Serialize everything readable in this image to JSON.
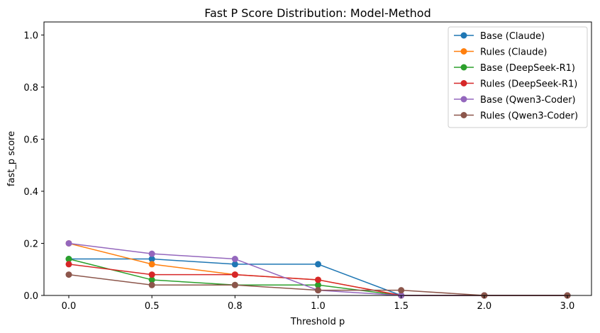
{
  "chart_data": {
    "type": "line",
    "title": "Fast P Score Distribution: Model-Method",
    "xlabel": "Threshold p",
    "ylabel": "fast_p score",
    "categories": [
      "0.0",
      "0.5",
      "0.8",
      "1.0",
      "1.5",
      "2.0",
      "3.0"
    ],
    "yticks": [
      "0.0",
      "0.2",
      "0.4",
      "0.6",
      "0.8",
      "1.0"
    ],
    "ylim": [
      0,
      1.05
    ],
    "grid": false,
    "legend_position": "top-right",
    "series": [
      {
        "name": "Base (Claude)",
        "color": "#1f77b4",
        "values": [
          0.14,
          0.14,
          0.12,
          0.12,
          0.0,
          0.0,
          0.0
        ]
      },
      {
        "name": "Rules (Claude)",
        "color": "#ff7f0e",
        "values": [
          0.2,
          0.12,
          0.08,
          0.06,
          0.0,
          0.0,
          0.0
        ]
      },
      {
        "name": "Base (DeepSeek-R1)",
        "color": "#2ca02c",
        "values": [
          0.14,
          0.06,
          0.04,
          0.04,
          0.0,
          0.0,
          0.0
        ]
      },
      {
        "name": "Rules (DeepSeek-R1)",
        "color": "#d62728",
        "values": [
          0.12,
          0.08,
          0.08,
          0.06,
          0.0,
          0.0,
          0.0
        ]
      },
      {
        "name": "Base (Qwen3-Coder)",
        "color": "#9467bd",
        "values": [
          0.2,
          0.16,
          0.14,
          0.02,
          0.0,
          0.0,
          0.0
        ]
      },
      {
        "name": "Rules (Qwen3-Coder)",
        "color": "#8c564b",
        "values": [
          0.08,
          0.04,
          0.04,
          0.02,
          0.02,
          0.0,
          0.0
        ]
      }
    ]
  }
}
